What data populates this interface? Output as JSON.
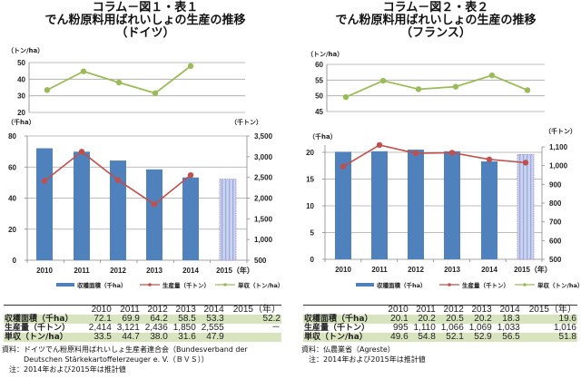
{
  "charts": [
    {
      "title_lines": [
        "コラム－図１・表１",
        "でん粉原料用ばれいしょの生産の推移",
        "（ドイツ）"
      ],
      "yield_unit": "（トン/ha）",
      "area_unit": "（千ha）",
      "prod_unit": "（千トン）",
      "year_suffix": "（年）",
      "legend": [
        "収穫面積（千ha）",
        "生産量（千トン）",
        "単収（トン/ha）"
      ],
      "table": {
        "headers": [
          "2010",
          "2011",
          "2012",
          "2013",
          "2014",
          "2015（年）"
        ],
        "rows": [
          {
            "label": "収穫面積（千ha）",
            "values": [
              "72.1",
              "69.9",
              "64.2",
              "58.5",
              "53.3",
              "52.2"
            ]
          },
          {
            "label": "生産量（千トン）",
            "values": [
              "2,414",
              "3,121",
              "2,436",
              "1,850",
              "2,555",
              "－"
            ]
          },
          {
            "label": "単収（トン/ha）",
            "values": [
              "33.5",
              "44.7",
              "38.0",
              "31.6",
              "47.9",
              ""
            ]
          }
        ]
      },
      "notes": [
        "資料：ドイツでん粉原料用ばれいしょ生産者連合会（Bundesverband der",
        "　　　Deutschen Stärkekartoffelerzeuger e. V.（ＢＶＳ））",
        "　注：2014年および2015年は推計値"
      ]
    },
    {
      "title_lines": [
        "コラム－図２・表２",
        "でん粉原料用ばれいしょの生産の推移",
        "（フランス）"
      ],
      "yield_unit": "（トン/ha）",
      "area_unit": "（千ha）",
      "prod_unit": "（千トン）",
      "year_suffix": "（年）",
      "legend": [
        "収穫面積（千ha）",
        "生産量（千トン）",
        "単収（トン/ha）"
      ],
      "table": {
        "headers": [
          "2010",
          "2011",
          "2012",
          "2013",
          "2014",
          "2015（年）"
        ],
        "rows": [
          {
            "label": "収穫面積（千ha）",
            "values": [
              "20.1",
              "20.2",
              "20.5",
              "20.2",
              "18.3",
              "19.6"
            ]
          },
          {
            "label": "生産量（千トン）",
            "values": [
              "995",
              "1,110",
              "1,066",
              "1,069",
              "1,033",
              "1,016"
            ]
          },
          {
            "label": "単収（トン/ha）",
            "values": [
              "49.6",
              "54.8",
              "52.1",
              "52.9",
              "56.5",
              "51.8"
            ]
          }
        ]
      },
      "notes": [
        "資料：仏農業省（Agreste）",
        "　注：2014年および2015年は推計値"
      ]
    }
  ],
  "colors": {
    "bar": "#4f81bd",
    "bar_estimate": "#c5cfe8",
    "bar_estimate_stripe": "#9aa8dc",
    "production_line": "#c0504d",
    "yield_line": "#9bbb59",
    "table_shade": "#d7e4bd"
  },
  "chart_data": [
    {
      "type": "bar+line",
      "title": "でん粉原料用ばれいしょの生産の推移（ドイツ）",
      "categories": [
        "2010",
        "2011",
        "2012",
        "2013",
        "2014",
        "2015"
      ],
      "series": [
        {
          "name": "収穫面積（千ha）",
          "type": "bar",
          "axis": "left",
          "values": [
            72.1,
            69.9,
            64.2,
            58.5,
            53.3,
            52.2
          ],
          "estimated_from_index": 5
        },
        {
          "name": "生産量（千トン）",
          "type": "line",
          "axis": "right",
          "values": [
            2414,
            3121,
            2436,
            1850,
            2555,
            null
          ]
        },
        {
          "name": "単収（トン/ha）",
          "type": "line",
          "axis": "top",
          "values": [
            33.5,
            44.7,
            38.0,
            31.6,
            47.9,
            null
          ]
        }
      ],
      "yield_axis": {
        "label": "（トン/ha）",
        "range": [
          20,
          50
        ],
        "ticks": [
          20,
          30,
          40,
          50
        ]
      },
      "left_axis": {
        "label": "（千ha）",
        "range": [
          0,
          80
        ],
        "ticks": [
          0,
          20,
          40,
          60,
          80
        ]
      },
      "right_axis": {
        "label": "（千トン）",
        "range": [
          500,
          3500
        ],
        "ticks": [
          500,
          1000,
          1500,
          2000,
          2500,
          3000,
          3500
        ],
        "tick_labels": [
          "500",
          "1,000",
          "1,500",
          "2,000",
          "2,500",
          "3,000",
          "3,500"
        ]
      },
      "xlabel": "（年）",
      "grid": true,
      "legend": "bottom"
    },
    {
      "type": "bar+line",
      "title": "でん粉原料用ばれいしょの生産の推移（フランス）",
      "categories": [
        "2010",
        "2011",
        "2012",
        "2013",
        "2014",
        "2015"
      ],
      "series": [
        {
          "name": "収穫面積（千ha）",
          "type": "bar",
          "axis": "left",
          "values": [
            20.1,
            20.2,
            20.5,
            20.2,
            18.3,
            19.6
          ],
          "estimated_from_index": 5
        },
        {
          "name": "生産量（千トン）",
          "type": "line",
          "axis": "right",
          "values": [
            995,
            1110,
            1066,
            1069,
            1033,
            1016
          ]
        },
        {
          "name": "単収（トン/ha）",
          "type": "line",
          "axis": "top",
          "values": [
            49.6,
            54.8,
            52.1,
            52.9,
            56.5,
            51.8
          ]
        }
      ],
      "yield_axis": {
        "label": "（トン/ha）",
        "range": [
          45,
          60
        ],
        "ticks": [
          45,
          50,
          55,
          60
        ]
      },
      "left_axis": {
        "label": "（千ha）",
        "range": [
          0,
          20
        ],
        "ticks": [
          0,
          5,
          10,
          15,
          20
        ]
      },
      "right_axis": {
        "label": "（千トン）",
        "range": [
          500,
          1100
        ],
        "ticks": [
          500,
          600,
          700,
          800,
          900,
          1000,
          1100
        ],
        "tick_labels": [
          "500",
          "600",
          "700",
          "800",
          "900",
          "1,000",
          "1,100"
        ]
      },
      "xlabel": "（年）",
      "grid": true,
      "legend": "bottom"
    }
  ]
}
